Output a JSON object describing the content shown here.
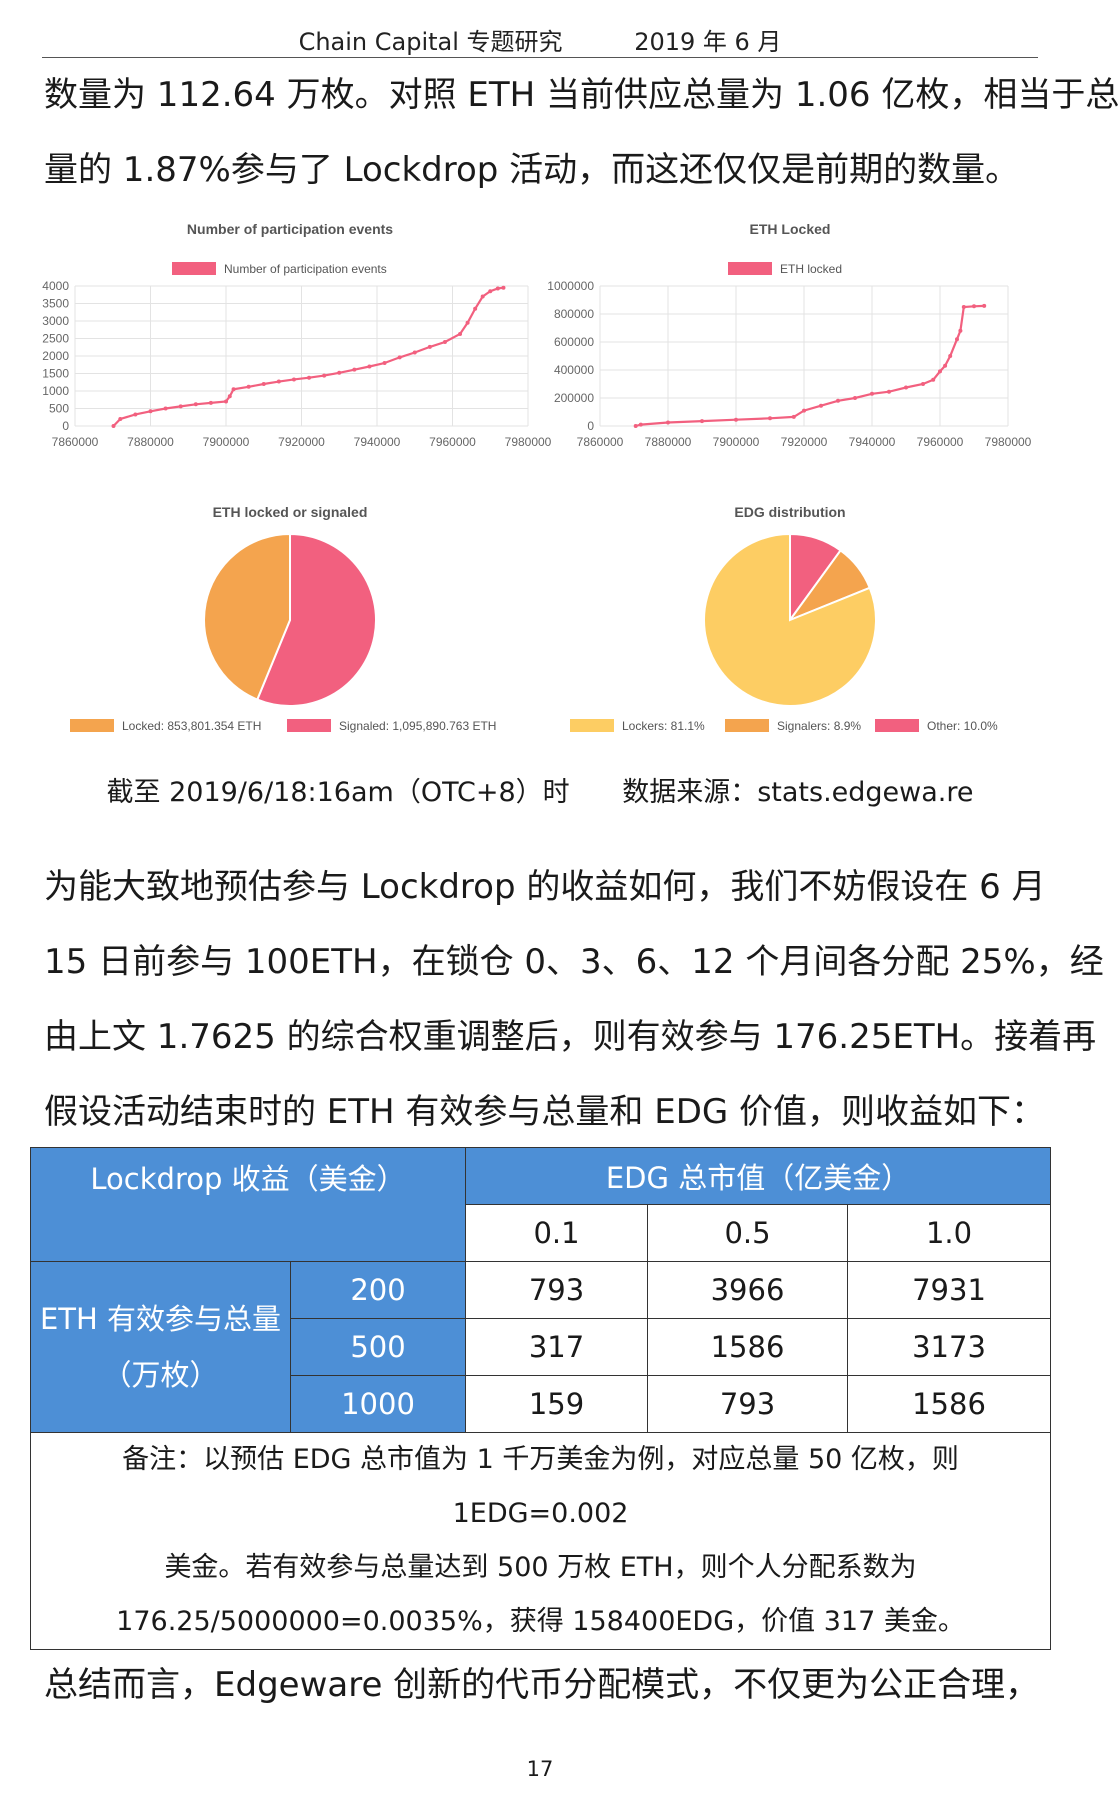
{
  "header": {
    "org": "Chain Capital 专题研究",
    "date": "2019 年 6 月"
  },
  "paragraphs": {
    "intro_line1": "数量为 112.64 万枚。对照 ETH 当前供应总量为 1.06 亿枚，相当于总",
    "intro_line2": "量的 1.87%参与了 Lockdrop 活动，而这还仅仅是前期的数量。",
    "est_line1": "为能大致地预估参与 Lockdrop 的收益如何，我们不妨假设在 6 月",
    "est_line2": "15 日前参与 100ETH，在锁仓 0、3、6、12 个月间各分配 25%，经",
    "est_line3": "由上文 1.7625 的综合权重调整后，则有效参与 176.25ETH。接着再",
    "est_line4": "假设活动结束时的 ETH 有效参与总量和 EDG 价值，则收益如下：",
    "summary_line1": "总结而言，Edgeware 创新的代币分配模式，不仅更为公正合理，"
  },
  "colors": {
    "pink": "#f2607f",
    "orange": "#f4a44e",
    "yellow": "#fdcd63",
    "table_blue": "#4d8fd6",
    "grid": "#e3e3e3"
  },
  "chart_data": [
    {
      "type": "line",
      "title": "Number of participation events",
      "legend": "Number of participation events",
      "color": "#f2607f",
      "xlim": [
        7860000,
        7980000
      ],
      "ylim": [
        0,
        4000
      ],
      "xticks": [
        "7860000",
        "7880000",
        "7900000",
        "7920000",
        "7940000",
        "7960000",
        "7980000"
      ],
      "yticks": [
        "4000",
        "3500",
        "3000",
        "2500",
        "2000",
        "1500",
        "1000",
        "500",
        "0"
      ],
      "points": [
        [
          7870200,
          0
        ],
        [
          7872000,
          200
        ],
        [
          7876000,
          330
        ],
        [
          7880000,
          420
        ],
        [
          7884000,
          500
        ],
        [
          7888000,
          560
        ],
        [
          7892000,
          620
        ],
        [
          7896000,
          660
        ],
        [
          7900000,
          700
        ],
        [
          7901000,
          850
        ],
        [
          7902000,
          1050
        ],
        [
          7906000,
          1120
        ],
        [
          7910000,
          1200
        ],
        [
          7914000,
          1270
        ],
        [
          7918000,
          1330
        ],
        [
          7922000,
          1380
        ],
        [
          7926000,
          1440
        ],
        [
          7930000,
          1520
        ],
        [
          7934000,
          1610
        ],
        [
          7938000,
          1700
        ],
        [
          7942000,
          1800
        ],
        [
          7946000,
          1960
        ],
        [
          7950000,
          2100
        ],
        [
          7954000,
          2260
        ],
        [
          7958000,
          2400
        ],
        [
          7962000,
          2630
        ],
        [
          7964000,
          2950
        ],
        [
          7966000,
          3350
        ],
        [
          7968000,
          3700
        ],
        [
          7970000,
          3850
        ],
        [
          7972000,
          3930
        ],
        [
          7973500,
          3950
        ]
      ]
    },
    {
      "type": "line",
      "title": "ETH Locked",
      "legend": "ETH locked",
      "color": "#f2607f",
      "xlim": [
        7860000,
        7980000
      ],
      "ylim": [
        0,
        1000000
      ],
      "xticks": [
        "7860000",
        "7880000",
        "7900000",
        "7920000",
        "7940000",
        "7960000",
        "7980000"
      ],
      "yticks": [
        "1000000",
        "800000",
        "600000",
        "400000",
        "200000",
        "0"
      ],
      "points": [
        [
          7870500,
          0
        ],
        [
          7872000,
          10000
        ],
        [
          7880000,
          25000
        ],
        [
          7890000,
          35000
        ],
        [
          7900000,
          45000
        ],
        [
          7910000,
          55000
        ],
        [
          7917000,
          65000
        ],
        [
          7920000,
          110000
        ],
        [
          7925000,
          145000
        ],
        [
          7930000,
          180000
        ],
        [
          7935000,
          200000
        ],
        [
          7940000,
          230000
        ],
        [
          7945000,
          245000
        ],
        [
          7950000,
          275000
        ],
        [
          7955000,
          300000
        ],
        [
          7958000,
          330000
        ],
        [
          7960000,
          390000
        ],
        [
          7961500,
          430000
        ],
        [
          7963000,
          500000
        ],
        [
          7965000,
          620000
        ],
        [
          7966000,
          680000
        ],
        [
          7967000,
          850000
        ],
        [
          7970000,
          855000
        ],
        [
          7973000,
          858000
        ]
      ]
    },
    {
      "type": "pie",
      "title": "ETH locked or signaled",
      "slices": [
        {
          "label": "Locked: 853,801.354 ETH",
          "value": 853801.354,
          "color": "#f4a44e"
        },
        {
          "label": "Signaled: 1,095,890.763 ETH",
          "value": 1095890.763,
          "color": "#f2607f"
        }
      ]
    },
    {
      "type": "pie",
      "title": "EDG distribution",
      "slices": [
        {
          "label": "Lockers: 81.1%",
          "value": 81.1,
          "color": "#fdcd63"
        },
        {
          "label": "Signalers: 8.9%",
          "value": 8.9,
          "color": "#f4a44e"
        },
        {
          "label": "Other: 10.0%",
          "value": 10.0,
          "color": "#f2607f"
        }
      ]
    }
  ],
  "caption": {
    "asof": "截至 2019/6/18:16am（OTC+8）时",
    "source": "数据来源：stats.edgewa.re"
  },
  "table": {
    "corner_header": "Lockdrop 收益（美金）",
    "col_group_header": "EDG 总市值（亿美金）",
    "col_headers": [
      "0.1",
      "0.5",
      "1.0"
    ],
    "row_group_header_line1": "ETH 有效参与总量",
    "row_group_header_line2": "（万枚）",
    "rows": [
      {
        "label": "200",
        "values": [
          "793",
          "3966",
          "7931"
        ]
      },
      {
        "label": "500",
        "values": [
          "317",
          "1586",
          "3173"
        ]
      },
      {
        "label": "1000",
        "values": [
          "159",
          "793",
          "1586"
        ]
      }
    ],
    "note_line1": "备注：以预估 EDG 总市值为 1 千万美金为例，对应总量 50 亿枚，则 1EDG=0.002",
    "note_line2": "美金。若有效参与总量达到 500 万枚 ETH，则个人分配系数为",
    "note_line3": "176.25/5000000=0.0035%，获得 158400EDG，价值 317 美金。"
  },
  "footer": {
    "page_number": "17"
  }
}
